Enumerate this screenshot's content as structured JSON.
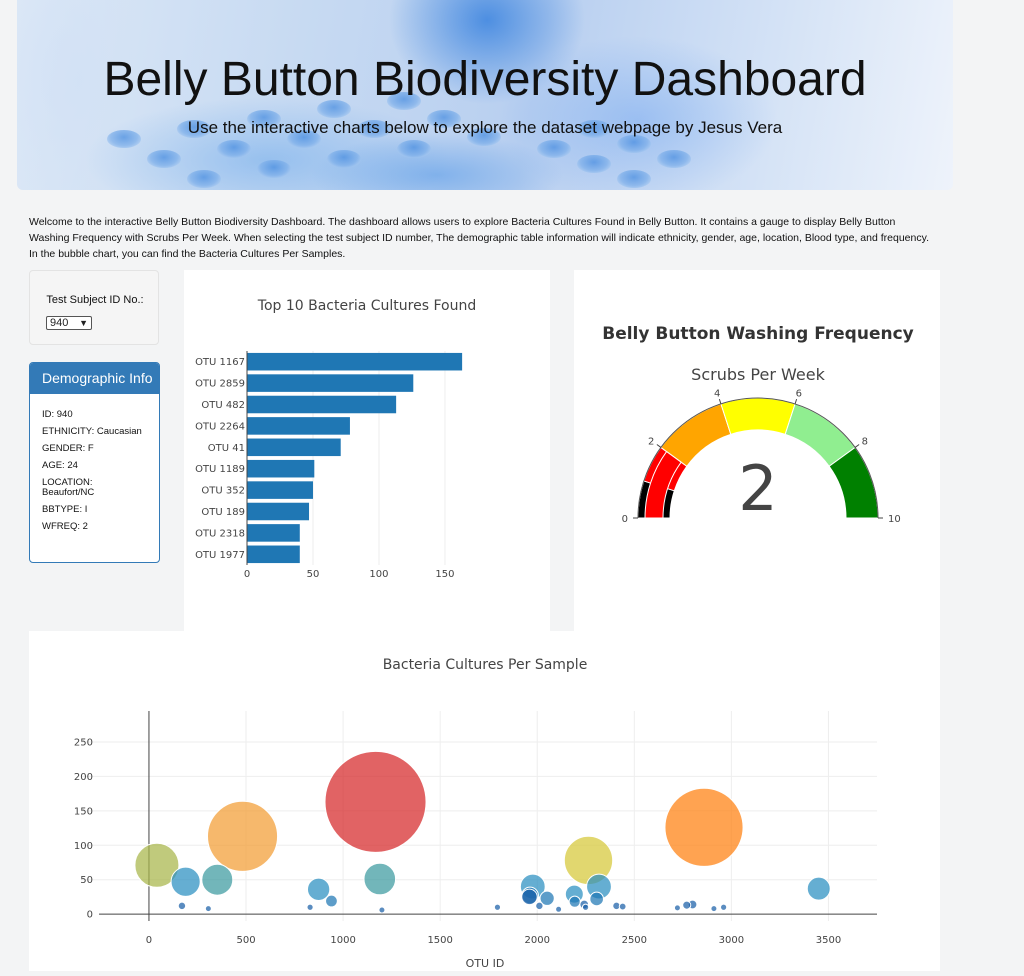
{
  "header": {
    "title": "Belly Button Biodiversity Dashboard",
    "subtitle": "Use the interactive charts below to explore the dataset webpage by Jesus Vera"
  },
  "intro": "Welcome to the interactive Belly Button Biodiversity Dashboard. The dashboard allows users to explore Bacteria Cultures Found in Belly Button. It contains a gauge to display Belly Button Washing Frequency with Scrubs Per Week. When selecting the test subject ID number, The demographic table information will indicate ethnicity, gender, age, location, Blood type, and frequency. In the bubble chart, you can find the Bacteria Cultures Per Samples.",
  "selector": {
    "label": "Test Subject ID No.:",
    "value": "940"
  },
  "demographic": {
    "title": "Demographic Info",
    "rows": [
      "ID: 940",
      "ETHNICITY: Caucasian",
      "GENDER: F",
      "AGE: 24",
      "LOCATION: Beaufort/NC",
      "BBTYPE: I",
      "WFREQ: 2"
    ]
  },
  "chart_data": [
    {
      "type": "bar",
      "orientation": "horizontal",
      "title": "Top 10 Bacteria Cultures Found",
      "categories": [
        "OTU 1167",
        "OTU 2859",
        "OTU 482",
        "OTU 2264",
        "OTU 41",
        "OTU 1189",
        "OTU 352",
        "OTU 189",
        "OTU 2318",
        "OTU 1977"
      ],
      "values": [
        163,
        126,
        113,
        78,
        71,
        51,
        50,
        47,
        40,
        40
      ],
      "xticks": [
        0,
        50,
        100,
        150
      ],
      "xlim": [
        0,
        172
      ],
      "color": "#1f77b4",
      "grid": true
    },
    {
      "type": "gauge",
      "title": "Belly Button Washing Frequency",
      "subtitle": "Scrubs Per Week",
      "value": 2,
      "range": [
        0,
        10
      ],
      "ticks": [
        0,
        2,
        4,
        6,
        8,
        10
      ],
      "steps": [
        {
          "range": [
            0,
            1
          ],
          "color": "#000000"
        },
        {
          "range": [
            1,
            2
          ],
          "color": "#ff0000"
        },
        {
          "range": [
            2,
            4
          ],
          "color": "#ffa500"
        },
        {
          "range": [
            4,
            6
          ],
          "color": "#ffff00"
        },
        {
          "range": [
            6,
            8
          ],
          "color": "#90ee90"
        },
        {
          "range": [
            8,
            10
          ],
          "color": "#008000"
        }
      ]
    },
    {
      "type": "scatter",
      "subtype": "bubble",
      "title": "Bacteria Cultures Per Sample",
      "xlabel": "OTU ID",
      "xticks": [
        0,
        500,
        1000,
        1500,
        2000,
        2500,
        3000,
        3500
      ],
      "yticks": [
        0,
        50,
        100,
        150,
        200,
        250
      ],
      "xlim": [
        -350,
        3750
      ],
      "ylim": [
        -10,
        295
      ],
      "grid": true,
      "points": [
        {
          "x": 1167,
          "y": 163,
          "color": "#d62728"
        },
        {
          "x": 2859,
          "y": 126,
          "color": "#ff7f0e"
        },
        {
          "x": 482,
          "y": 113,
          "color": "#f39c33"
        },
        {
          "x": 2264,
          "y": 78,
          "color": "#d6c838"
        },
        {
          "x": 41,
          "y": 71,
          "color": "#a8b54a"
        },
        {
          "x": 1189,
          "y": 51,
          "color": "#3c9aa0"
        },
        {
          "x": 352,
          "y": 50,
          "color": "#3c9aa0"
        },
        {
          "x": 189,
          "y": 47,
          "color": "#2a8fc0"
        },
        {
          "x": 2318,
          "y": 40,
          "color": "#2a8fc0"
        },
        {
          "x": 1977,
          "y": 40,
          "color": "#2a8fc0"
        },
        {
          "x": 3450,
          "y": 37,
          "color": "#2a8fc0"
        },
        {
          "x": 874,
          "y": 36,
          "color": "#2a8fc0"
        },
        {
          "x": 2191,
          "y": 29,
          "color": "#2a8fc0"
        },
        {
          "x": 1963,
          "y": 27,
          "color": "#1f77b4"
        },
        {
          "x": 2051,
          "y": 23,
          "color": "#1f77b4"
        },
        {
          "x": 940,
          "y": 19,
          "color": "#1f77b4"
        },
        {
          "x": 2306,
          "y": 22,
          "color": "#1f77b4"
        },
        {
          "x": 2193,
          "y": 18,
          "color": "#1f77b4"
        },
        {
          "x": 1960,
          "y": 25,
          "color": "#1a5fa8"
        },
        {
          "x": 2242,
          "y": 14,
          "color": "#1a5fa8"
        },
        {
          "x": 170,
          "y": 12,
          "color": "#1a5fa8"
        },
        {
          "x": 2011,
          "y": 12,
          "color": "#1a5fa8"
        },
        {
          "x": 2408,
          "y": 12,
          "color": "#1a5fa8"
        },
        {
          "x": 2770,
          "y": 13,
          "color": "#1a5fa8"
        },
        {
          "x": 2800,
          "y": 14,
          "color": "#1a5fa8"
        },
        {
          "x": 1795,
          "y": 10,
          "color": "#1a5fa8"
        },
        {
          "x": 2249,
          "y": 10,
          "color": "#1a5fa8"
        },
        {
          "x": 2960,
          "y": 10,
          "color": "#1a5fa8"
        },
        {
          "x": 830,
          "y": 10,
          "color": "#1a5fa8"
        },
        {
          "x": 2722,
          "y": 9,
          "color": "#1a5fa8"
        },
        {
          "x": 2440,
          "y": 11,
          "color": "#1a5fa8"
        },
        {
          "x": 306,
          "y": 8,
          "color": "#1a5fa8"
        },
        {
          "x": 2910,
          "y": 8,
          "color": "#1a5fa8"
        },
        {
          "x": 2110,
          "y": 7,
          "color": "#1a5fa8"
        },
        {
          "x": 1200,
          "y": 6,
          "color": "#1a5fa8"
        }
      ]
    }
  ]
}
